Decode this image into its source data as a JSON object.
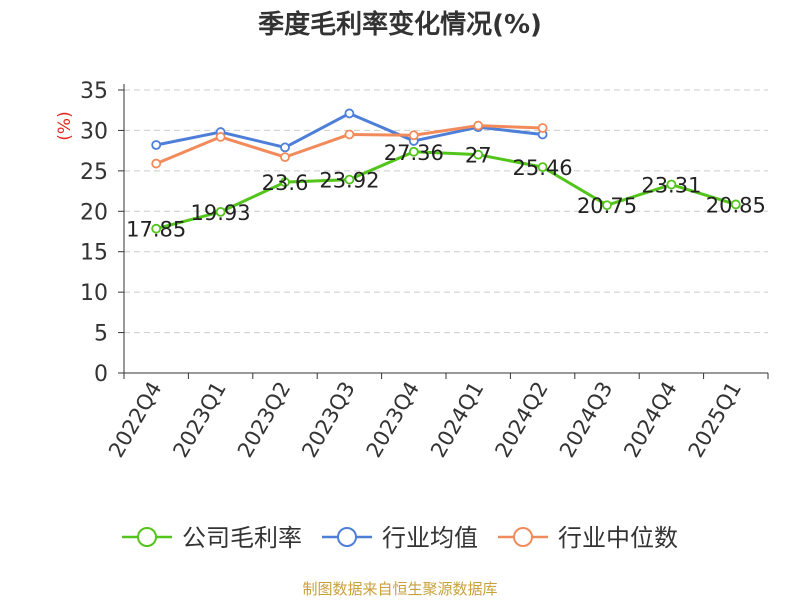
{
  "chart_data": {
    "type": "line",
    "title": "季度毛利率变化情况(%)",
    "ylabel": "(%)",
    "xlabel": "",
    "ylim": [
      0,
      35
    ],
    "yticks": [
      0,
      5,
      10,
      15,
      20,
      25,
      30,
      35
    ],
    "grid": true,
    "legend_position": "bottom",
    "categories": [
      "2022Q4",
      "2023Q1",
      "2023Q2",
      "2023Q3",
      "2023Q4",
      "2024Q1",
      "2024Q2",
      "2024Q3",
      "2024Q4",
      "2025Q1"
    ],
    "series": [
      {
        "name": "公司毛利率",
        "color": "#52c41a",
        "values": [
          17.85,
          19.93,
          23.6,
          23.92,
          27.36,
          27,
          25.46,
          20.75,
          23.31,
          20.85
        ],
        "labels": [
          "17.85",
          "19.93",
          "23.6",
          "23.92",
          "27.36",
          "27",
          "25.46",
          "20.75",
          "23.31",
          "20.85"
        ]
      },
      {
        "name": "行业均值",
        "color": "#4e7fd8",
        "values": [
          28.2,
          29.8,
          27.9,
          32.1,
          28.7,
          30.4,
          29.5,
          null,
          null,
          null
        ]
      },
      {
        "name": "行业中位数",
        "color": "#f28b5b",
        "values": [
          25.9,
          29.2,
          26.7,
          29.5,
          29.4,
          30.6,
          30.3,
          null,
          null,
          null
        ]
      }
    ]
  },
  "ylabel_color": "#e0281e",
  "footer": {
    "text": "制图数据来自恒生聚源数据库",
    "color": "#c9a13b"
  }
}
